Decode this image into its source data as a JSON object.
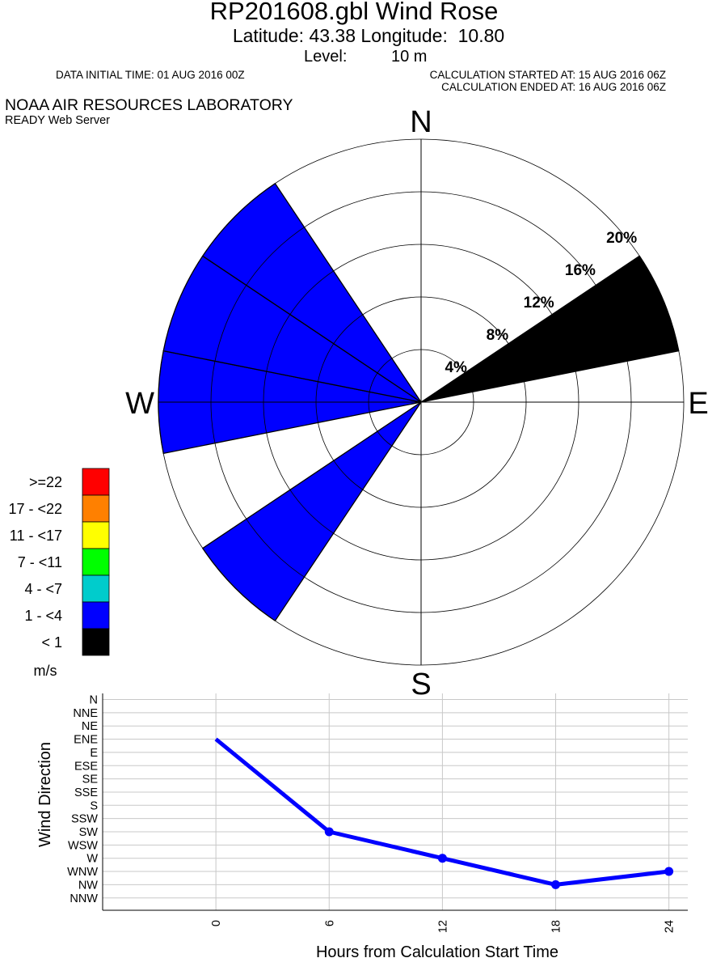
{
  "header": {
    "title": "RP201608.gbl Wind Rose",
    "location": "Latitude: 43.38 Longitude:  10.80",
    "level_label": "Level:",
    "level_value": "10 m",
    "initial_time": "DATA INITIAL TIME: 01 AUG 2016 00Z",
    "calc_started": "CALCULATION STARTED AT: 15 AUG 2016 06Z",
    "calc_ended": "CALCULATION ENDED AT: 16 AUG 2016 06Z",
    "org": "NOAA AIR RESOURCES LABORATORY",
    "server": "READY Web Server"
  },
  "chart_data": [
    {
      "type": "wind-rose",
      "compass": [
        "N",
        "E",
        "S",
        "W"
      ],
      "rings": [
        4,
        8,
        12,
        16,
        20
      ],
      "ring_labels": [
        "4%",
        "8%",
        "12%",
        "16%",
        "20%"
      ],
      "rmax": 20,
      "sector_width_deg": 22.5,
      "sectors": [
        {
          "direction": "ENE",
          "angle_deg": 67.5,
          "frequency": 20,
          "class": "< 1"
        },
        {
          "direction": "SW",
          "angle_deg": 225,
          "frequency": 20,
          "class": "1 - <4"
        },
        {
          "direction": "W",
          "angle_deg": 270,
          "frequency": 20,
          "class": "1 - <4"
        },
        {
          "direction": "WNW",
          "angle_deg": 292.5,
          "frequency": 20,
          "class": "1 - <4"
        },
        {
          "direction": "NW",
          "angle_deg": 315,
          "frequency": 20,
          "class": "1 - <4"
        }
      ],
      "legend": {
        "unit": "m/s",
        "items": [
          {
            "label": ">=22",
            "color": "#ff0000"
          },
          {
            "label": "17 - <22",
            "color": "#ff8000"
          },
          {
            "label": "11 - <17",
            "color": "#ffff00"
          },
          {
            "label": "7 - <11",
            "color": "#00ff00"
          },
          {
            "label": "4 - <7",
            "color": "#00cccc"
          },
          {
            "label": "1 - <4",
            "color": "#0000ff"
          },
          {
            "label": "< 1",
            "color": "#000000"
          }
        ]
      }
    },
    {
      "type": "line",
      "ylabel": "Wind Direction",
      "xlabel": "Hours from Calculation Start Time",
      "y_categories": [
        "N",
        "NNE",
        "NE",
        "ENE",
        "E",
        "ESE",
        "SE",
        "SSE",
        "S",
        "SSW",
        "SW",
        "WSW",
        "W",
        "WNW",
        "NW",
        "NNW"
      ],
      "x_ticks": [
        0,
        6,
        12,
        18,
        24
      ],
      "xlim": [
        -6,
        25
      ],
      "series": [
        {
          "x": [
            0,
            6,
            12,
            18,
            24
          ],
          "y": [
            "ENE",
            "SW",
            "W",
            "NW",
            "WNW"
          ],
          "color": "#0000ff"
        }
      ],
      "grid": true
    }
  ]
}
